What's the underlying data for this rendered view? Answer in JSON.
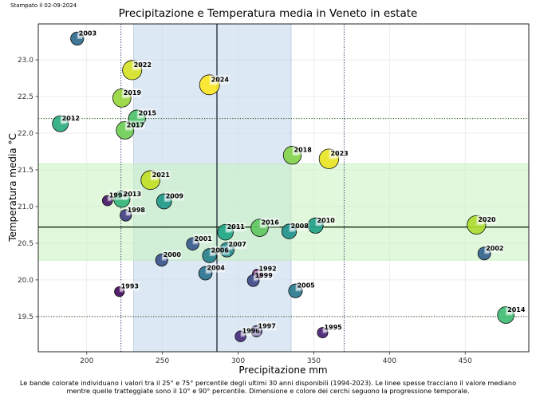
{
  "stamp": "Stampato il 02-09-2024",
  "caption": {
    "line1": "Le bande colorate individuano i valori tra il 25° e 75° percentile degli ultimi 30 anni disponibili (1994-2023). Le linee spesse tracciano il valore mediano",
    "line2": "mentre quelle tratteggiate sono il 10° e 90° percentile. Dimensione e colore dei cerchi seguono la progressione temporale."
  },
  "chart_data": {
    "type": "scatter",
    "title": "Precipitazione e Temperatura media in Veneto in estate",
    "xlabel": "Precipitazione mm",
    "ylabel": "Temperatura media °C",
    "xlim": [
      168,
      492
    ],
    "ylim": [
      19.02,
      23.49
    ],
    "xticks": [
      200,
      250,
      300,
      350,
      400,
      450
    ],
    "yticks": [
      19.5,
      20.0,
      20.5,
      21.0,
      21.5,
      22.0,
      22.5,
      23.0
    ],
    "grid": true,
    "reference": {
      "precip": {
        "p10": 222.6,
        "p25": 231,
        "median": 286,
        "p75": 335,
        "p90": 370,
        "band_color": "#c5d8ec"
      },
      "temp": {
        "p10": 19.5,
        "p25": 20.27,
        "median": 20.72,
        "p75": 21.58,
        "p90": 22.2,
        "band_color": "#c9f2c0"
      }
    },
    "colormap": "viridis",
    "points": [
      {
        "year": "1992",
        "x": 312.6,
        "y": 20.08
      },
      {
        "year": "1993",
        "x": 221.6,
        "y": 19.84
      },
      {
        "year": "1994",
        "x": 213.7,
        "y": 21.08
      },
      {
        "year": "1995",
        "x": 355.8,
        "y": 19.28
      },
      {
        "year": "1996",
        "x": 301.6,
        "y": 19.23
      },
      {
        "year": "1997",
        "x": 312.1,
        "y": 19.3
      },
      {
        "year": "1998",
        "x": 225.8,
        "y": 20.88
      },
      {
        "year": "1999",
        "x": 310.0,
        "y": 19.99
      },
      {
        "year": "2000",
        "x": 249.5,
        "y": 20.27
      },
      {
        "year": "2001",
        "x": 270.0,
        "y": 20.49
      },
      {
        "year": "2002",
        "x": 462.6,
        "y": 20.36
      },
      {
        "year": "2003",
        "x": 193.7,
        "y": 23.29
      },
      {
        "year": "2004",
        "x": 278.4,
        "y": 20.09
      },
      {
        "year": "2005",
        "x": 337.9,
        "y": 19.85
      },
      {
        "year": "2006",
        "x": 281.1,
        "y": 20.33
      },
      {
        "year": "2007",
        "x": 292.6,
        "y": 20.41
      },
      {
        "year": "2008",
        "x": 333.7,
        "y": 20.66
      },
      {
        "year": "2009",
        "x": 251.1,
        "y": 21.07
      },
      {
        "year": "2010",
        "x": 351.1,
        "y": 20.74
      },
      {
        "year": "2011",
        "x": 291.6,
        "y": 20.65
      },
      {
        "year": "2012",
        "x": 182.6,
        "y": 22.13
      },
      {
        "year": "2013",
        "x": 223.2,
        "y": 21.1
      },
      {
        "year": "2014",
        "x": 476.8,
        "y": 19.52
      },
      {
        "year": "2015",
        "x": 233.2,
        "y": 22.2
      },
      {
        "year": "2016",
        "x": 314.2,
        "y": 20.71
      },
      {
        "year": "2017",
        "x": 225.3,
        "y": 22.04
      },
      {
        "year": "2018",
        "x": 335.8,
        "y": 21.7
      },
      {
        "year": "2019",
        "x": 223.2,
        "y": 22.48
      },
      {
        "year": "2020",
        "x": 457.4,
        "y": 20.75
      },
      {
        "year": "2021",
        "x": 242.1,
        "y": 21.36
      },
      {
        "year": "2022",
        "x": 230.0,
        "y": 22.86
      },
      {
        "year": "2023",
        "x": 360.0,
        "y": 21.65
      },
      {
        "year": "2024",
        "x": 281.1,
        "y": 22.66
      }
    ]
  }
}
